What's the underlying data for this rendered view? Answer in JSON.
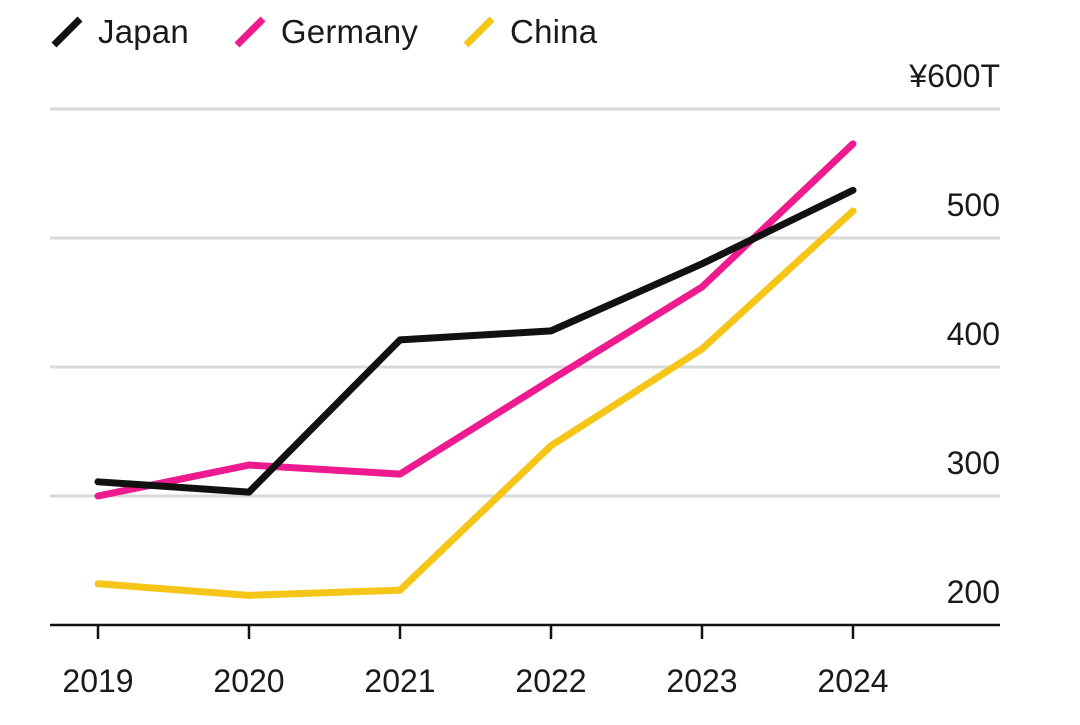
{
  "chart_data": {
    "type": "line",
    "title": "",
    "xlabel": "",
    "ylabel": "",
    "y_unit_label": "¥600T",
    "categories": [
      "2019",
      "2020",
      "2021",
      "2022",
      "2023",
      "2024"
    ],
    "y_ticks": [
      200,
      300,
      400,
      500,
      600
    ],
    "y_tick_labels": [
      "200",
      "300",
      "400",
      "500",
      "¥600T"
    ],
    "ylim": [
      180,
      610
    ],
    "grid": true,
    "legend_position": "top-left",
    "series": [
      {
        "name": "Japan",
        "color": "#111111",
        "values": [
          311,
          303,
          421,
          428,
          480,
          537
        ]
      },
      {
        "name": "Germany",
        "color": "#ee1a8f",
        "values": [
          300,
          324,
          317,
          390,
          462,
          573
        ]
      },
      {
        "name": "China",
        "color": "#f5c518",
        "values": [
          232,
          223,
          227,
          339,
          414,
          521
        ]
      }
    ]
  }
}
